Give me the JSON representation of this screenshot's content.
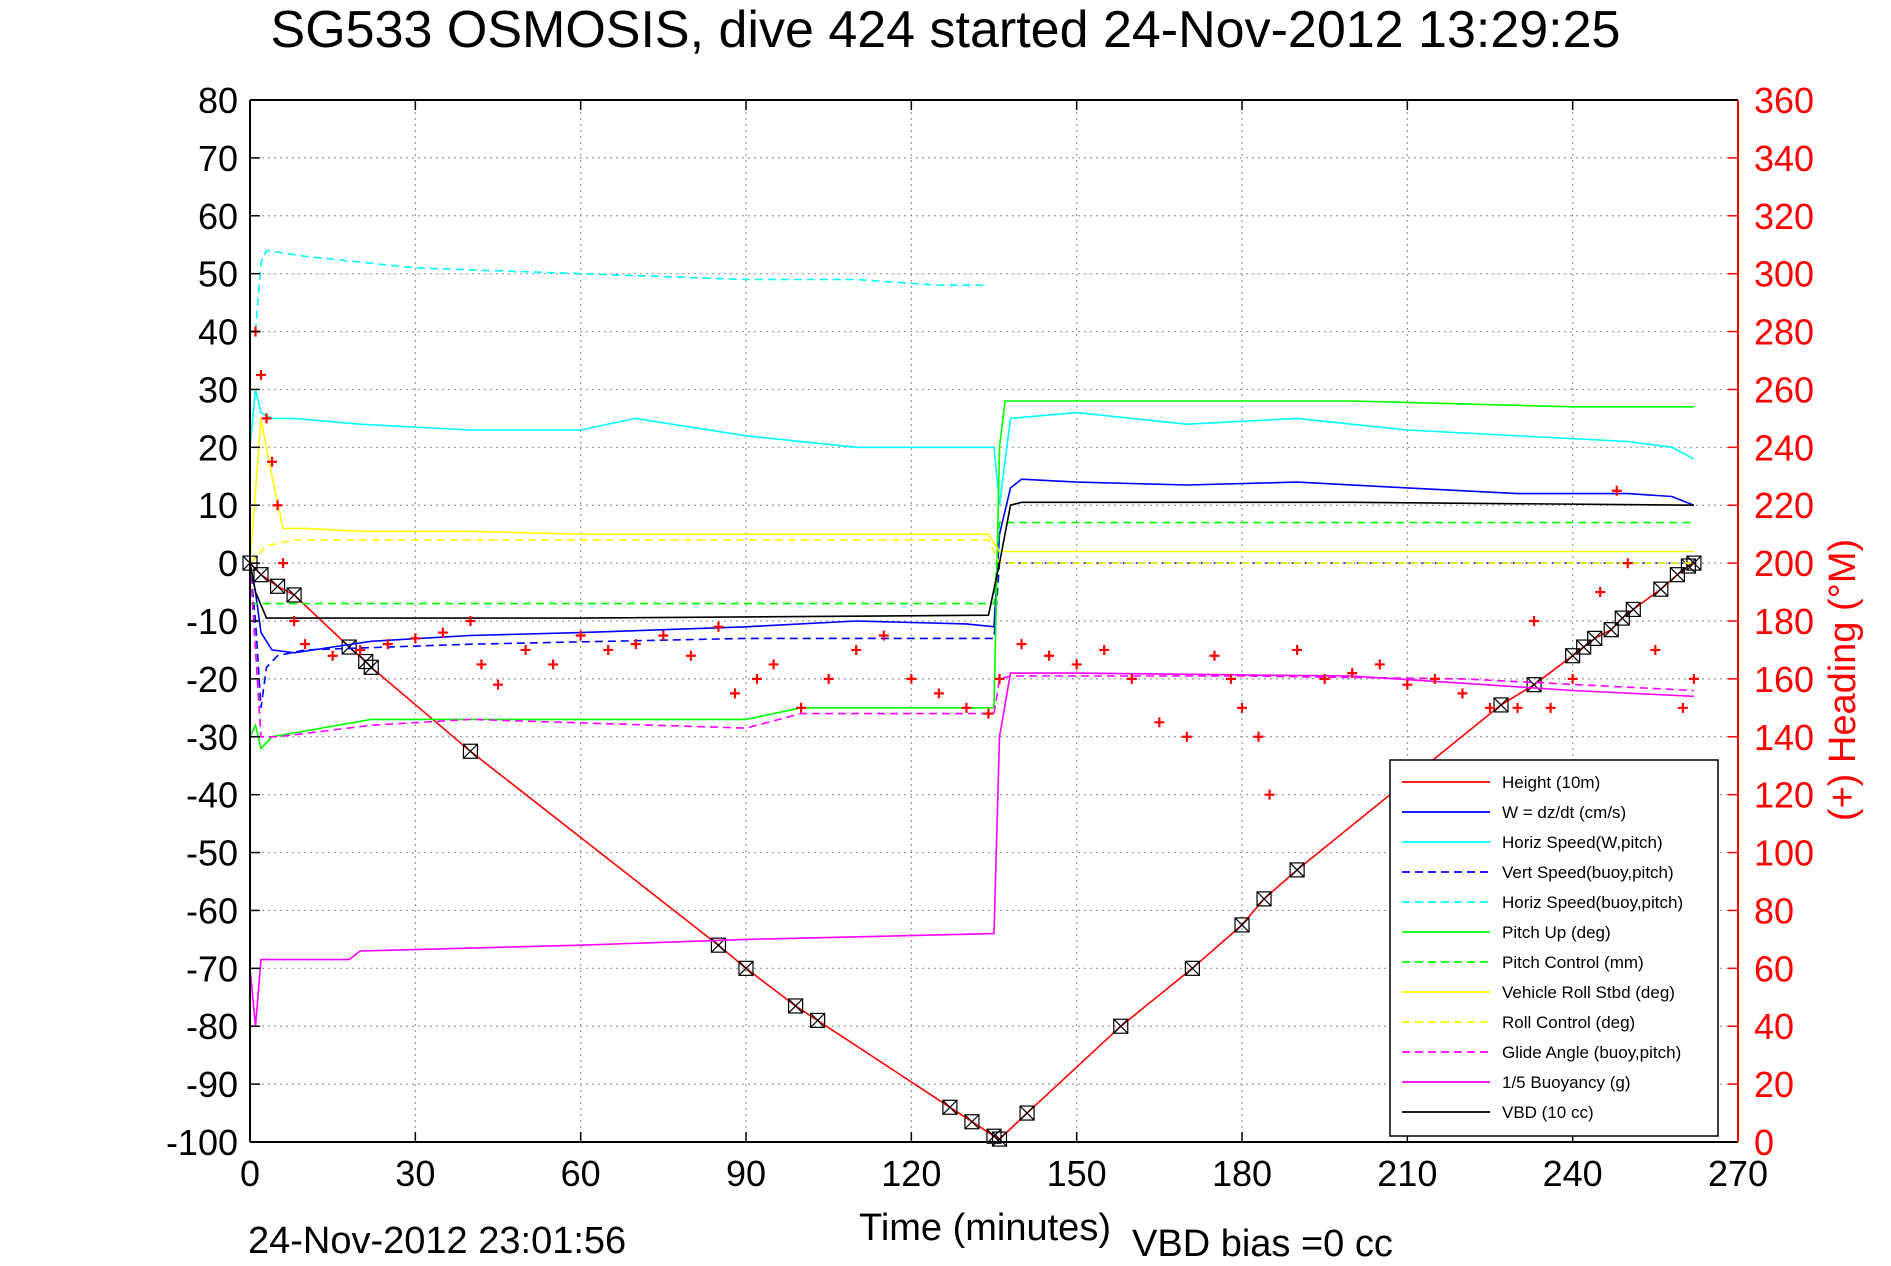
{
  "title": "SG533 OSMOSIS, dive 424 started 24-Nov-2012 13:29:25",
  "footer": {
    "timestamp": "24-Nov-2012 23:01:56",
    "vbd_bias": "VBD bias =0 cc"
  },
  "colors": {
    "height": "#ff0000",
    "w": "#0000ff",
    "horiz_speed": "#00ffff",
    "pitch": "#00ff00",
    "roll": "#ffff00",
    "glide": "#ff00ff",
    "buoyancy": "#ff00ff",
    "vbd": "#000000",
    "heading": "#ff0000"
  },
  "chart_data": {
    "type": "line",
    "title": "SG533 OSMOSIS, dive 424 started 24-Nov-2012 13:29:25",
    "xlabel": "Time (minutes)",
    "ylabel": "",
    "y2label": "(+) Heading (°M)",
    "xlim": [
      0,
      270
    ],
    "ylim": [
      -100,
      80
    ],
    "y2lim": [
      0,
      360
    ],
    "xticks": [
      "0",
      "30",
      "60",
      "90",
      "120",
      "150",
      "180",
      "210",
      "240",
      "270"
    ],
    "yticks": [
      "80",
      "70",
      "60",
      "50",
      "40",
      "30",
      "20",
      "10",
      "0",
      "-10",
      "-20",
      "-30",
      "-40",
      "-50",
      "-60",
      "-70",
      "-80",
      "-90",
      "-100"
    ],
    "y2ticks": [
      "360",
      "340",
      "320",
      "300",
      "280",
      "260",
      "240",
      "220",
      "200",
      "180",
      "160",
      "140",
      "120",
      "100",
      "80",
      "60",
      "40",
      "20",
      "0"
    ],
    "grid": true,
    "legend_position": "bottom-right",
    "legend": [
      {
        "label": "Height (10m)",
        "color": "#ff0000",
        "dash": false
      },
      {
        "label": "W = dz/dt (cm/s)",
        "color": "#0000ff",
        "dash": false
      },
      {
        "label": "Horiz Speed(W,pitch)",
        "color": "#00ffff",
        "dash": false
      },
      {
        "label": "Vert Speed(buoy,pitch)",
        "color": "#0000ff",
        "dash": true
      },
      {
        "label": "Horiz Speed(buoy,pitch)",
        "color": "#00ffff",
        "dash": true
      },
      {
        "label": "Pitch Up (deg)",
        "color": "#00ff00",
        "dash": false
      },
      {
        "label": "Pitch Control (mm)",
        "color": "#00ff00",
        "dash": true
      },
      {
        "label": "Vehicle Roll Stbd (deg)",
        "color": "#ffff00",
        "dash": false
      },
      {
        "label": "Roll Control (deg)",
        "color": "#ffff00",
        "dash": true
      },
      {
        "label": "Glide Angle (buoy,pitch)",
        "color": "#ff00ff",
        "dash": true
      },
      {
        "label": "1/5 Buoyancy (g)",
        "color": "#ff00ff",
        "dash": false
      },
      {
        "label": "VBD (10 cc)",
        "color": "#000000",
        "dash": false
      }
    ],
    "series": [
      {
        "key": "height",
        "axis": "left",
        "color": "#ff0000",
        "dash": false,
        "markers": "x-box",
        "x": [
          0,
          2,
          5,
          8,
          18,
          21,
          22,
          40,
          85,
          90,
          99,
          103,
          127,
          131,
          135,
          136,
          141,
          158,
          171,
          180,
          184,
          190,
          227,
          233,
          240,
          242,
          244,
          247,
          249,
          251,
          256,
          259,
          261,
          262
        ],
        "y": [
          0,
          -2,
          -4,
          -5.5,
          -14.5,
          -17,
          -18,
          -32.5,
          -66,
          -70,
          -76.5,
          -79,
          -94,
          -96.5,
          -99,
          -99.5,
          -95,
          -80,
          -70,
          -62.5,
          -58,
          -53,
          -24.5,
          -21,
          -16,
          -14.5,
          -13,
          -11.5,
          -9.5,
          -8,
          -4.5,
          -2,
          -0.5,
          0
        ]
      },
      {
        "key": "w",
        "axis": "left",
        "color": "#0000ff",
        "dash": false,
        "x": [
          0,
          1,
          2,
          4,
          8,
          15,
          22,
          40,
          60,
          90,
          110,
          130,
          135,
          136,
          138,
          140,
          150,
          170,
          190,
          210,
          230,
          250,
          258,
          262
        ],
        "y": [
          0,
          -5,
          -12,
          -15,
          -15.5,
          -14.5,
          -13.5,
          -12.5,
          -12,
          -11,
          -10,
          -10.5,
          -11,
          5,
          13,
          14.5,
          14,
          13.5,
          14,
          13,
          12,
          12,
          11.5,
          10
        ]
      },
      {
        "key": "horiz_speed_w",
        "axis": "left",
        "color": "#00ffff",
        "dash": false,
        "x": [
          0,
          1,
          2,
          4,
          8,
          20,
          40,
          60,
          70,
          90,
          110,
          130,
          135,
          136,
          138,
          150,
          170,
          190,
          210,
          230,
          250,
          258,
          262
        ],
        "y": [
          20,
          30,
          26,
          25,
          25,
          24,
          23,
          23,
          25,
          22,
          20,
          20,
          20,
          10,
          25,
          26,
          24,
          25,
          23,
          22,
          21,
          20,
          18
        ]
      },
      {
        "key": "vert_speed_buoy",
        "axis": "left",
        "color": "#0000ff",
        "dash": true,
        "x": [
          0,
          1,
          2,
          3,
          5,
          10,
          40,
          90,
          135,
          136,
          140,
          262
        ],
        "y": [
          0,
          -10,
          -25,
          -18,
          -16,
          -15,
          -14,
          -13,
          -13,
          0,
          0,
          0
        ]
      },
      {
        "key": "horiz_speed_buoy",
        "axis": "left",
        "color": "#00ffff",
        "dash": true,
        "x": [
          1,
          2,
          3,
          10,
          30,
          60,
          90,
          110,
          125,
          133
        ],
        "y": [
          40,
          52,
          54,
          53,
          51,
          50,
          49,
          49,
          48,
          48
        ]
      },
      {
        "key": "pitch_up",
        "axis": "left",
        "color": "#00ff00",
        "dash": false,
        "x": [
          0,
          1,
          2,
          4,
          10,
          22,
          30,
          60,
          90,
          100,
          130,
          135,
          136,
          137,
          140,
          160,
          200,
          240,
          262
        ],
        "y": [
          -30,
          -28,
          -32,
          -30,
          -29,
          -27,
          -27,
          -27,
          -27,
          -25,
          -25,
          -25,
          20,
          28,
          28,
          28,
          28,
          27,
          27
        ]
      },
      {
        "key": "pitch_control",
        "axis": "left",
        "color": "#00ff00",
        "dash": true,
        "x": [
          0,
          2,
          30,
          90,
          135,
          136,
          262
        ],
        "y": [
          -7,
          -7,
          -7,
          -7,
          -7,
          7,
          7
        ]
      },
      {
        "key": "roll",
        "axis": "left",
        "color": "#ffff00",
        "dash": false,
        "x": [
          0,
          2,
          4,
          6,
          10,
          20,
          40,
          60,
          90,
          120,
          134,
          136,
          140,
          170,
          200,
          230,
          262
        ],
        "y": [
          0,
          25,
          15,
          6,
          6,
          5.5,
          5.5,
          5,
          5,
          5,
          5,
          2,
          2,
          2,
          2,
          2,
          2
        ]
      },
      {
        "key": "roll_control",
        "axis": "left",
        "color": "#ffff00",
        "dash": true,
        "x": [
          0,
          3,
          8,
          60,
          134,
          136,
          262
        ],
        "y": [
          0,
          3,
          4,
          4,
          4,
          0,
          0
        ]
      },
      {
        "key": "glide_angle",
        "axis": "left",
        "color": "#ff00ff",
        "dash": true,
        "x": [
          0,
          2,
          5,
          22,
          40,
          90,
          100,
          135,
          136,
          138,
          180,
          220,
          262
        ],
        "y": [
          0,
          -30,
          -30,
          -28,
          -27,
          -28.5,
          -26,
          -26,
          -20,
          -19.5,
          -19.5,
          -20,
          -22
        ]
      },
      {
        "key": "buoyancy",
        "axis": "left",
        "color": "#ff00ff",
        "dash": false,
        "x": [
          0,
          1,
          2,
          18,
          20,
          60,
          90,
          135,
          136,
          138,
          150,
          200,
          240,
          262
        ],
        "y": [
          -70,
          -80,
          -68.5,
          -68.5,
          -67,
          -66,
          -65,
          -64,
          -30,
          -19,
          -19,
          -19.5,
          -22,
          -23
        ]
      },
      {
        "key": "vbd",
        "axis": "left",
        "color": "#000000",
        "dash": false,
        "x": [
          0,
          1,
          3,
          5,
          60,
          134,
          136,
          138,
          140,
          200,
          262
        ],
        "y": [
          0,
          -5,
          -9.5,
          -9.5,
          -9.5,
          -9,
          0,
          10,
          10.5,
          10.5,
          10
        ]
      },
      {
        "key": "heading",
        "axis": "right",
        "color": "#ff0000",
        "markers": "plus",
        "x": [
          1,
          2,
          3,
          4,
          5,
          6,
          8,
          10,
          15,
          20,
          25,
          30,
          35,
          40,
          42,
          45,
          50,
          55,
          60,
          65,
          70,
          75,
          80,
          85,
          88,
          92,
          95,
          100,
          105,
          110,
          115,
          120,
          125,
          130,
          134,
          136,
          140,
          145,
          150,
          155,
          160,
          165,
          170,
          175,
          178,
          180,
          183,
          185,
          190,
          195,
          200,
          205,
          210,
          215,
          220,
          225,
          230,
          233,
          236,
          240,
          245,
          248,
          250,
          255,
          260,
          262
        ],
        "y": [
          280,
          265,
          250,
          235,
          220,
          200,
          180,
          172,
          168,
          170,
          172,
          174,
          176,
          180,
          165,
          158,
          170,
          165,
          175,
          170,
          172,
          175,
          168,
          178,
          155,
          160,
          165,
          150,
          160,
          170,
          175,
          160,
          155,
          150,
          148,
          160,
          172,
          168,
          165,
          170,
          160,
          145,
          140,
          168,
          160,
          150,
          140,
          120,
          170,
          160,
          162,
          165,
          158,
          160,
          155,
          150,
          150,
          180,
          150,
          160,
          190,
          225,
          200,
          170,
          150,
          160
        ]
      }
    ]
  }
}
